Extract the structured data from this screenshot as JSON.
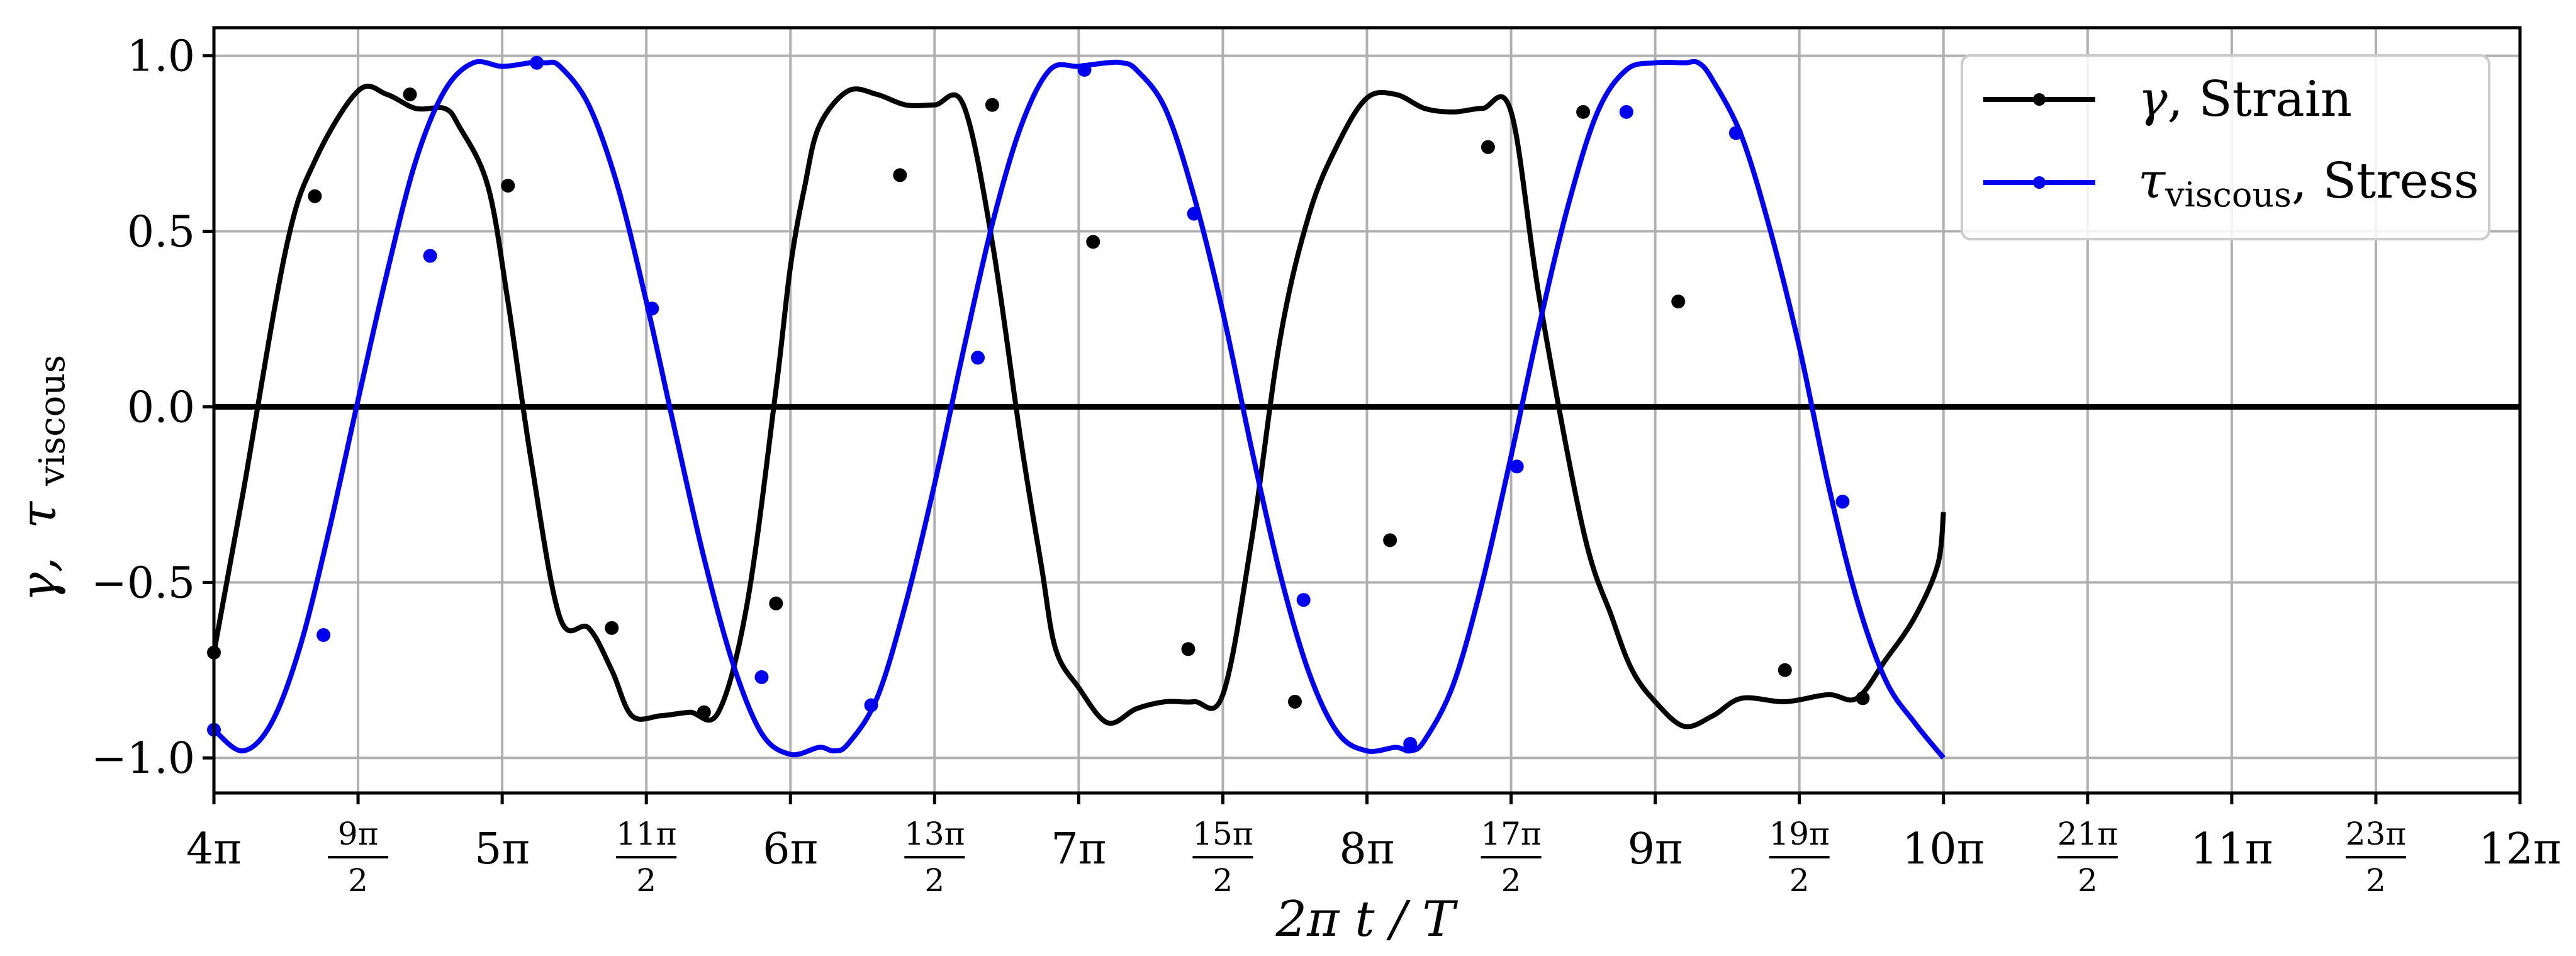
{
  "chart_data": {
    "type": "line",
    "x_unit": "pi",
    "xlim": [
      4,
      12
    ],
    "ylim": [
      -1.1,
      1.08
    ],
    "grid": true,
    "legend_position": "top-right",
    "xlabel": "2π t / T",
    "ylabel": "γ, τ_viscous",
    "ylabel_parts": {
      "gamma": "γ,",
      "tau": "τ",
      "sub": "viscous"
    },
    "x_ticks": [
      {
        "value": 4,
        "label": "4π",
        "kind": "int"
      },
      {
        "value": 4.5,
        "label": "9π/2",
        "kind": "frac",
        "num": "9π",
        "den": "2"
      },
      {
        "value": 5,
        "label": "5π",
        "kind": "int"
      },
      {
        "value": 5.5,
        "label": "11π/2",
        "kind": "frac",
        "num": "11π",
        "den": "2"
      },
      {
        "value": 6,
        "label": "6π",
        "kind": "int"
      },
      {
        "value": 6.5,
        "label": "13π/2",
        "kind": "frac",
        "num": "13π",
        "den": "2"
      },
      {
        "value": 7,
        "label": "7π",
        "kind": "int"
      },
      {
        "value": 7.5,
        "label": "15π/2",
        "kind": "frac",
        "num": "15π",
        "den": "2"
      },
      {
        "value": 8,
        "label": "8π",
        "kind": "int"
      },
      {
        "value": 8.5,
        "label": "17π/2",
        "kind": "frac",
        "num": "17π",
        "den": "2"
      },
      {
        "value": 9,
        "label": "9π",
        "kind": "int"
      },
      {
        "value": 9.5,
        "label": "19π/2",
        "kind": "frac",
        "num": "19π",
        "den": "2"
      },
      {
        "value": 10,
        "label": "10π",
        "kind": "int"
      },
      {
        "value": 10.5,
        "label": "21π/2",
        "kind": "frac",
        "num": "21π",
        "den": "2"
      },
      {
        "value": 11,
        "label": "11π",
        "kind": "int"
      },
      {
        "value": 11.5,
        "label": "23π/2",
        "kind": "frac",
        "num": "23π",
        "den": "2"
      },
      {
        "value": 12,
        "label": "12π",
        "kind": "int"
      }
    ],
    "y_ticks": [
      {
        "value": 1.0,
        "label": "1.0"
      },
      {
        "value": 0.5,
        "label": "0.5"
      },
      {
        "value": 0.0,
        "label": "0.0"
      },
      {
        "value": -0.5,
        "label": "−0.5"
      },
      {
        "value": -1.0,
        "label": "−1.0"
      }
    ],
    "zero_line": 0,
    "series": [
      {
        "name": "γ, Strain",
        "legend_symbol": "γ",
        "legend_suffix": ", Strain",
        "color": "#000000",
        "x": [
          4.0,
          4.1,
          4.25,
          4.35,
          4.5,
          4.6,
          4.7,
          4.8,
          4.85,
          4.95,
          5.02,
          5.1,
          5.2,
          5.3,
          5.38,
          5.45,
          5.55,
          5.65,
          5.75,
          5.85,
          5.95,
          6.0,
          6.05,
          6.1,
          6.2,
          6.3,
          6.4,
          6.5,
          6.6,
          6.7,
          6.8,
          6.87,
          6.92,
          7.0,
          7.1,
          7.2,
          7.3,
          7.4,
          7.5,
          7.6,
          7.7,
          7.8,
          7.9,
          8.0,
          8.1,
          8.2,
          8.3,
          8.4,
          8.5,
          8.6,
          8.75,
          8.85,
          8.92,
          9.0,
          9.1,
          9.2,
          9.3,
          9.45,
          9.6,
          9.7,
          9.8,
          9.9,
          9.98,
          10.0
        ],
        "y": [
          -0.7,
          -0.25,
          0.45,
          0.7,
          0.9,
          0.89,
          0.85,
          0.85,
          0.8,
          0.63,
          0.3,
          -0.15,
          -0.6,
          -0.63,
          -0.75,
          -0.88,
          -0.88,
          -0.87,
          -0.87,
          -0.56,
          0.05,
          0.4,
          0.63,
          0.8,
          0.9,
          0.89,
          0.86,
          0.86,
          0.86,
          0.47,
          -0.1,
          -0.45,
          -0.69,
          -0.8,
          -0.9,
          -0.86,
          -0.84,
          -0.84,
          -0.82,
          -0.38,
          0.2,
          0.55,
          0.75,
          0.88,
          0.89,
          0.85,
          0.84,
          0.85,
          0.84,
          0.3,
          -0.35,
          -0.6,
          -0.75,
          -0.84,
          -0.91,
          -0.88,
          -0.83,
          -0.84,
          -0.82,
          -0.83,
          -0.72,
          -0.6,
          -0.45,
          -0.3
        ],
        "markers_x": [
          4.0,
          4.35,
          4.68,
          5.02,
          5.38,
          5.7,
          5.95,
          6.38,
          6.7,
          7.05,
          7.38,
          7.75,
          8.08,
          8.42,
          8.75,
          9.08,
          9.45,
          9.72
        ],
        "markers_y": [
          -0.7,
          0.6,
          0.89,
          0.63,
          -0.63,
          -0.87,
          -0.56,
          0.66,
          0.86,
          0.47,
          -0.69,
          -0.84,
          -0.38,
          0.74,
          0.84,
          0.3,
          -0.75,
          -0.83
        ]
      },
      {
        "name": "τviscous, Stress",
        "legend_symbol": "τ",
        "legend_sub": "viscous",
        "legend_suffix": ", Stress",
        "color": "#0000ee",
        "x": [
          4.0,
          4.1,
          4.2,
          4.3,
          4.4,
          4.5,
          4.6,
          4.7,
          4.8,
          4.9,
          5.0,
          5.1,
          5.15,
          5.2,
          5.3,
          5.4,
          5.5,
          5.6,
          5.7,
          5.8,
          5.9,
          6.0,
          6.1,
          6.15,
          6.2,
          6.3,
          6.4,
          6.5,
          6.6,
          6.7,
          6.8,
          6.9,
          7.0,
          7.1,
          7.15,
          7.2,
          7.3,
          7.4,
          7.5,
          7.6,
          7.7,
          7.8,
          7.9,
          8.0,
          8.1,
          8.15,
          8.2,
          8.3,
          8.4,
          8.5,
          8.6,
          8.7,
          8.8,
          8.9,
          9.0,
          9.1,
          9.15,
          9.2,
          9.3,
          9.4,
          9.5,
          9.6,
          9.7,
          9.8,
          9.9,
          10.0
        ],
        "y": [
          -0.92,
          -0.98,
          -0.9,
          -0.68,
          -0.35,
          0.02,
          0.38,
          0.7,
          0.9,
          0.98,
          0.97,
          0.98,
          0.98,
          0.97,
          0.86,
          0.63,
          0.3,
          -0.07,
          -0.43,
          -0.73,
          -0.93,
          -0.99,
          -0.97,
          -0.98,
          -0.96,
          -0.83,
          -0.56,
          -0.22,
          0.16,
          0.52,
          0.8,
          0.96,
          0.97,
          0.98,
          0.98,
          0.96,
          0.85,
          0.6,
          0.27,
          -0.12,
          -0.48,
          -0.76,
          -0.93,
          -0.98,
          -0.97,
          -0.98,
          -0.95,
          -0.79,
          -0.5,
          -0.14,
          0.24,
          0.58,
          0.84,
          0.96,
          0.98,
          0.98,
          0.98,
          0.93,
          0.77,
          0.5,
          0.17,
          -0.22,
          -0.55,
          -0.78,
          -0.9,
          -1.0
        ],
        "markers_x": [
          4.0,
          4.38,
          4.75,
          5.12,
          5.52,
          5.9,
          6.28,
          6.65,
          7.02,
          7.4,
          7.78,
          8.15,
          8.52,
          8.9,
          9.28,
          9.65
        ],
        "markers_y": [
          -0.92,
          -0.65,
          0.43,
          0.98,
          0.28,
          -0.77,
          -0.85,
          0.14,
          0.96,
          0.55,
          -0.55,
          -0.96,
          -0.17,
          0.84,
          0.78,
          -0.27
        ]
      }
    ]
  }
}
